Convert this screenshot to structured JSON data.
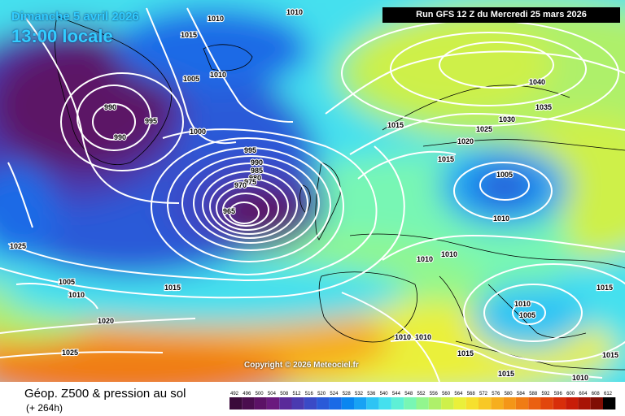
{
  "header": {
    "date": "Dimanche 5 avril 2026",
    "time": "13:00 locale",
    "run": "Run GFS 12 Z du Mercredi 25 mars 2026"
  },
  "copyright": "Copyright © 2026 Meteociel.fr",
  "footer": {
    "parameter": "Géop. Z500 & pression au sol",
    "lead_time": "(+ 264h)"
  },
  "legend": {
    "labels": [
      "492",
      "496",
      "500",
      "504",
      "508",
      "512",
      "516",
      "520",
      "524",
      "528",
      "532",
      "536",
      "540",
      "544",
      "548",
      "552",
      "556",
      "560",
      "564",
      "568",
      "572",
      "576",
      "580",
      "584",
      "588",
      "592",
      "596",
      "600",
      "604",
      "608",
      "612"
    ],
    "colors": [
      "#3a0a3a",
      "#4a0d4e",
      "#5c1266",
      "#6a1a7e",
      "#5a2a9a",
      "#4a3ab0",
      "#3a4ac6",
      "#2a5ad8",
      "#1a6ae6",
      "#0a86f0",
      "#18a2f4",
      "#2ec4f4",
      "#44e0ee",
      "#5ef0d6",
      "#78f6b4",
      "#92f68e",
      "#aef06a",
      "#cef04a",
      "#eaf03a",
      "#f6e02e",
      "#f8c826",
      "#f6ae1e",
      "#f49618",
      "#f07c14",
      "#ea6010",
      "#e2460c",
      "#d82e0a",
      "#c81c08",
      "#a81406",
      "#800e04",
      "#000000"
    ]
  },
  "isobars": [
    {
      "value": "1010",
      "label": "1010"
    },
    {
      "value": "1015",
      "label": "1015"
    },
    {
      "value": "1005",
      "label": "1005"
    },
    {
      "value": "1000",
      "label": "1000"
    },
    {
      "value": "995",
      "label": "995"
    },
    {
      "value": "990",
      "label": "990"
    },
    {
      "value": "985",
      "label": "985"
    },
    {
      "value": "980",
      "label": "980"
    },
    {
      "value": "975",
      "label": "975"
    },
    {
      "value": "970",
      "label": "970"
    },
    {
      "value": "965",
      "label": "965"
    },
    {
      "value": "1020",
      "label": "1020"
    },
    {
      "value": "1025",
      "label": "1025"
    },
    {
      "value": "1030",
      "label": "1030"
    },
    {
      "value": "1035",
      "label": "1035"
    },
    {
      "value": "1040",
      "label": "1040"
    }
  ]
}
